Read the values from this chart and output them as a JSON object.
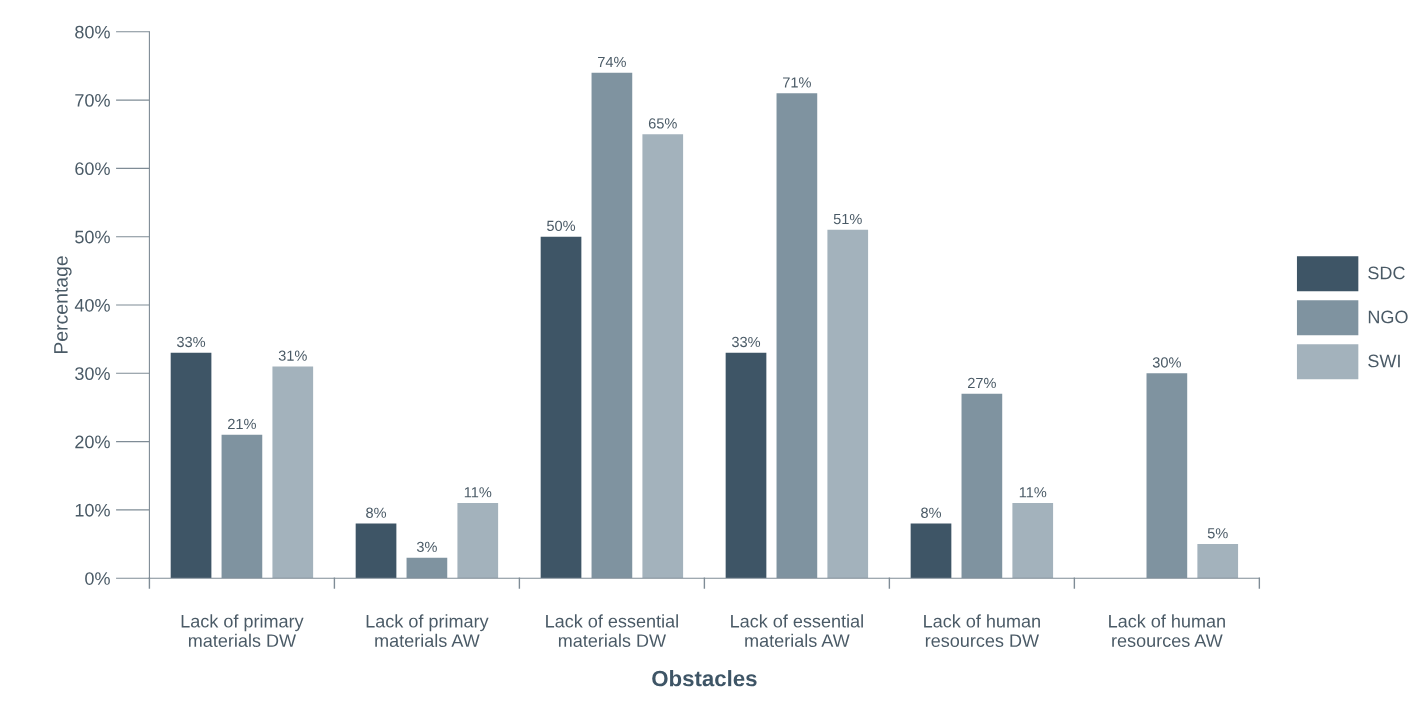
{
  "chart_data": {
    "type": "bar",
    "xlabel": "Obstacles",
    "ylabel": "Percentage",
    "categories": [
      "Lack of primary\nmaterials DW",
      "Lack of primary\nmaterials AW",
      "Lack of essential\nmaterials DW",
      "Lack of essential\nmaterials AW",
      "Lack of human\nresources DW",
      "Lack of human\nresources AW"
    ],
    "series": [
      {
        "name": "SDC",
        "color": "#3e5566",
        "values": [
          33,
          8,
          50,
          33,
          8,
          null
        ],
        "value_labels": [
          "33%",
          "8%",
          "50%",
          "33%",
          "8%",
          null
        ]
      },
      {
        "name": "NGO",
        "color": "#7f93a0",
        "values": [
          21,
          3,
          74,
          71,
          27,
          30
        ],
        "value_labels": [
          "21%",
          "3%",
          "74%",
          "71%",
          "27%",
          "30%"
        ]
      },
      {
        "name": "SWI",
        "color": "#a3b2bc",
        "values": [
          31,
          11,
          65,
          51,
          11,
          5
        ],
        "value_labels": [
          "31%",
          "11%",
          "65%",
          "51%",
          "11%",
          "5%"
        ]
      }
    ],
    "ylim": [
      0,
      80
    ],
    "yticks": [
      {
        "value": 0,
        "label": "0%"
      },
      {
        "value": 10,
        "label": "10%"
      },
      {
        "value": 20,
        "label": "20%"
      },
      {
        "value": 30,
        "label": "30%"
      },
      {
        "value": 40,
        "label": "40%"
      },
      {
        "value": 50,
        "label": "50%"
      },
      {
        "value": 60,
        "label": "60%"
      },
      {
        "value": 70,
        "label": "70%"
      },
      {
        "value": 80,
        "label": "80%"
      }
    ],
    "grid": false,
    "legend": "right"
  }
}
